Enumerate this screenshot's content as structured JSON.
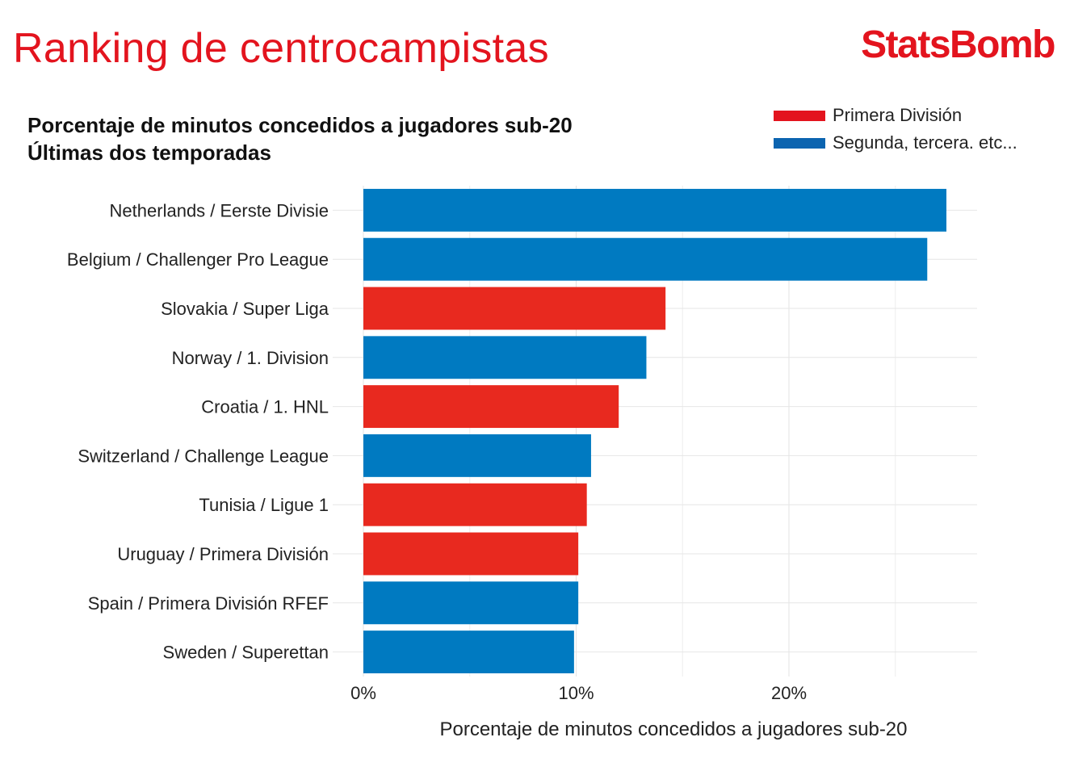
{
  "header": {
    "title": "Ranking de centrocampistas",
    "brand": "StatsBomb"
  },
  "chart_data": {
    "type": "bar",
    "orientation": "horizontal",
    "title": "Porcentaje de minutos concedidos a jugadores sub-20",
    "subtitle": "Últimas dos temporadas",
    "xlabel": "Porcentaje de minutos concedidos a jugadores sub-20",
    "ylabel": "",
    "xlim": [
      0,
      29
    ],
    "xticks": [
      0,
      10,
      20
    ],
    "xtick_labels": [
      "0%",
      "10%",
      "20%"
    ],
    "grid": true,
    "legend": {
      "position": "top-right",
      "entries": [
        {
          "name": "Primera División",
          "color": "#e3141e"
        },
        {
          "name": "Segunda, tercera. etc...",
          "color": "#0b64b0"
        }
      ]
    },
    "colors": {
      "primera": "#e8291f",
      "segunda": "#007ac1"
    },
    "categories": [
      "Netherlands / Eerste Divisie",
      "Belgium / Challenger Pro League",
      "Slovakia / Super Liga",
      "Norway / 1. Division",
      "Croatia / 1. HNL",
      "Switzerland / Challenge League",
      "Tunisia / Ligue 1",
      "Uruguay / Primera División",
      "Spain / Primera División RFEF",
      "Sweden / Superettan"
    ],
    "values": [
      27.4,
      26.5,
      14.2,
      13.3,
      12.0,
      10.7,
      10.5,
      10.1,
      10.1,
      9.9
    ],
    "tier": [
      "segunda",
      "segunda",
      "primera",
      "segunda",
      "primera",
      "segunda",
      "primera",
      "primera",
      "segunda",
      "segunda"
    ]
  }
}
